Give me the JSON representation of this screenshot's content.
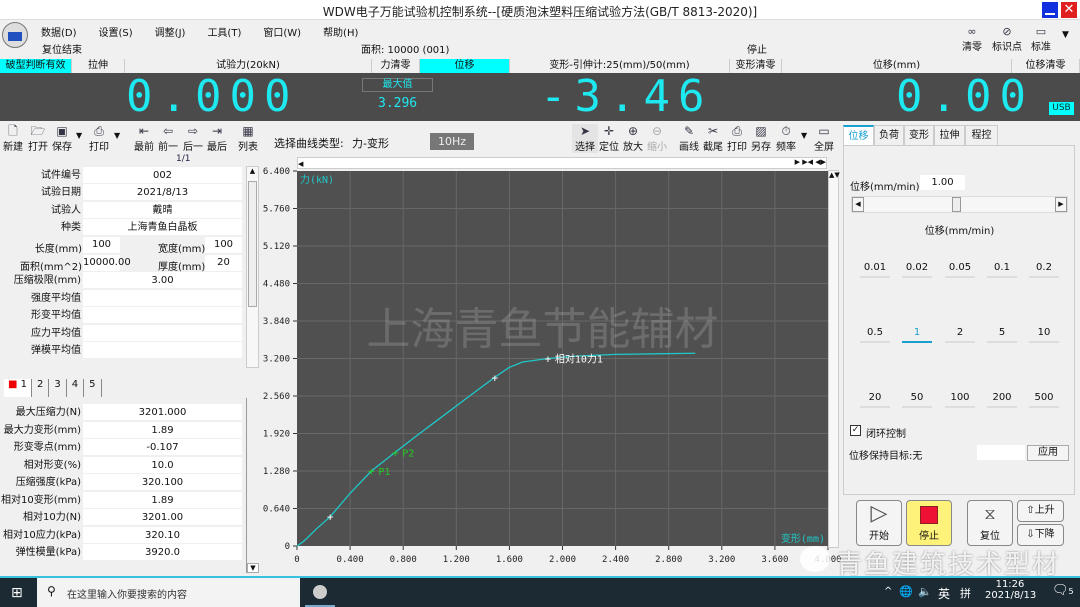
{
  "window": {
    "title": "WDW电子万能试验机控制系统--[硬质泡沫塑料压缩试验方法(GB/T 8813-2020)]"
  },
  "menu": [
    "数据(D)",
    "设置(S)",
    "调整(J)",
    "工具(T)",
    "窗口(W)",
    "帮助(H)"
  ],
  "status": {
    "reset": "复位结束",
    "area": "面积: 10000 (001)",
    "state": "停止"
  },
  "top_tools": [
    {
      "label": "清零",
      "icon": "link-icon"
    },
    {
      "label": "标识点",
      "icon": "marker-icon"
    },
    {
      "label": "标准",
      "icon": "window-icon"
    }
  ],
  "channels": [
    "破型判断有效",
    "拉伸",
    "试验力(20kN)",
    "力清零",
    "位移",
    "变形-引伸计:25(mm)/50(mm)",
    "变形清零",
    "位移(mm)",
    "位移清零"
  ],
  "readouts": {
    "force": "0.000",
    "max_label": "最大值",
    "max_value": "3.296",
    "deform": "-3.46",
    "disp": "0.00",
    "usb": "USB"
  },
  "toolbar_left": [
    "新建",
    "打开",
    "保存",
    "打印",
    "最前",
    "前一",
    "后一",
    "最后",
    "列表"
  ],
  "page": "1/1",
  "curve_type": {
    "label": "选择曲线类型:",
    "value": "力-变形",
    "freq": "10Hz"
  },
  "toolbar_chart": [
    "选择",
    "定位",
    "放大",
    "缩小",
    "画线",
    "截尾",
    "打印",
    "另存",
    "频率",
    "全屏"
  ],
  "specimen": [
    {
      "label": "试件编号",
      "value": "002"
    },
    {
      "label": "试验日期",
      "value": "2021/8/13"
    },
    {
      "label": "试验人",
      "value": "戴晴"
    },
    {
      "label": "种类",
      "value": "上海青鱼白晶板"
    }
  ],
  "dims": {
    "length_label": "长度(mm)",
    "length": "100",
    "width_label": "宽度(mm)",
    "width": "100",
    "area_label": "面积(mm^2)",
    "area": "10000.00",
    "thick_label": "厚度(mm)",
    "thick": "20",
    "limit_label": "压缩极限(mm)",
    "limit": "3.00"
  },
  "averages": [
    "强度平均值",
    "形变平均值",
    "应力平均值",
    "弹模平均值"
  ],
  "result_tabs": [
    "1",
    "2",
    "3",
    "4",
    "5"
  ],
  "results": [
    {
      "label": "最大压缩力(N)",
      "value": "3201.000"
    },
    {
      "label": "最大力变形(mm)",
      "value": "1.89"
    },
    {
      "label": "形变零点(mm)",
      "value": "-0.107"
    },
    {
      "label": "相对形变(%)",
      "value": "10.0"
    },
    {
      "label": "压缩强度(kPa)",
      "value": "320.100"
    },
    {
      "label": "相对10变形(mm)",
      "value": "1.89"
    },
    {
      "label": "相对10力(N)",
      "value": "3201.00"
    },
    {
      "label": "相对10应力(kPa)",
      "value": "320.10"
    },
    {
      "label": "弹性模量(kPa)",
      "value": "3920.0"
    }
  ],
  "right_tabs": [
    "位移",
    "负荷",
    "变形",
    "拉伸",
    "程控"
  ],
  "speed": {
    "label": "位移(mm/min)",
    "value": "1.00",
    "group": "位移(mm/min)",
    "slider_fraction": 0.48,
    "options": [
      "0.01",
      "0.02",
      "0.05",
      "0.1",
      "0.2",
      "0.5",
      "1",
      "2",
      "5",
      "10",
      "20",
      "50",
      "100",
      "200",
      "500"
    ],
    "selected": "1",
    "closed_loop": "闭环控制",
    "hold": "位移保持目标:无",
    "apply": "应用"
  },
  "controls": {
    "start": "开始",
    "stop": "停止",
    "reset": "复位",
    "up": "上升",
    "down": "下降"
  },
  "watermarks": {
    "chart": "上海青鱼节能辅材",
    "overlay": "青鱼建筑技术型材"
  },
  "taskbar": {
    "search_placeholder": "在这里输入你要搜索的内容",
    "ime": "英",
    "time": "11:26",
    "date": "2021/8/13",
    "notifications": "5"
  },
  "colors": {
    "curve": "#1fc8c8",
    "marker_green": "#22cc22",
    "digits": "#1ee8f0",
    "plot_bg": "#505050"
  },
  "chart_data": {
    "type": "line",
    "ylabel": "力(kN)",
    "xlabel": "变形(mm)",
    "xlim": [
      0,
      4.0
    ],
    "ylim": [
      0,
      6.4
    ],
    "xticks": [
      "0",
      "0.400",
      "0.800",
      "1.200",
      "1.600",
      "2.000",
      "2.400",
      "2.800",
      "3.200",
      "3.600",
      "4.000"
    ],
    "yticks": [
      "0",
      "0.640",
      "1.280",
      "1.920",
      "2.560",
      "3.200",
      "3.840",
      "4.480",
      "5.120",
      "5.760",
      "6.400"
    ],
    "grid": true,
    "x": [
      0,
      0.05,
      0.15,
      0.25,
      0.4,
      0.56,
      0.74,
      0.9,
      1.1,
      1.3,
      1.49,
      1.6,
      1.7,
      1.89,
      2.1,
      2.4,
      2.7,
      3.0
    ],
    "y": [
      0,
      0.08,
      0.3,
      0.5,
      0.9,
      1.28,
      1.6,
      1.88,
      2.22,
      2.56,
      2.88,
      3.05,
      3.14,
      3.2,
      3.24,
      3.27,
      3.28,
      3.29
    ],
    "markers": [
      {
        "x": 0.25,
        "y": 0.5,
        "label": "",
        "color": "white"
      },
      {
        "x": 0.56,
        "y": 1.28,
        "label": "P1",
        "color": "green"
      },
      {
        "x": 0.74,
        "y": 1.6,
        "label": "P2",
        "color": "green"
      },
      {
        "x": 1.49,
        "y": 2.88,
        "label": "",
        "color": "white"
      },
      {
        "x": 1.89,
        "y": 3.2,
        "label": "相对10力1",
        "color": "white"
      }
    ]
  }
}
